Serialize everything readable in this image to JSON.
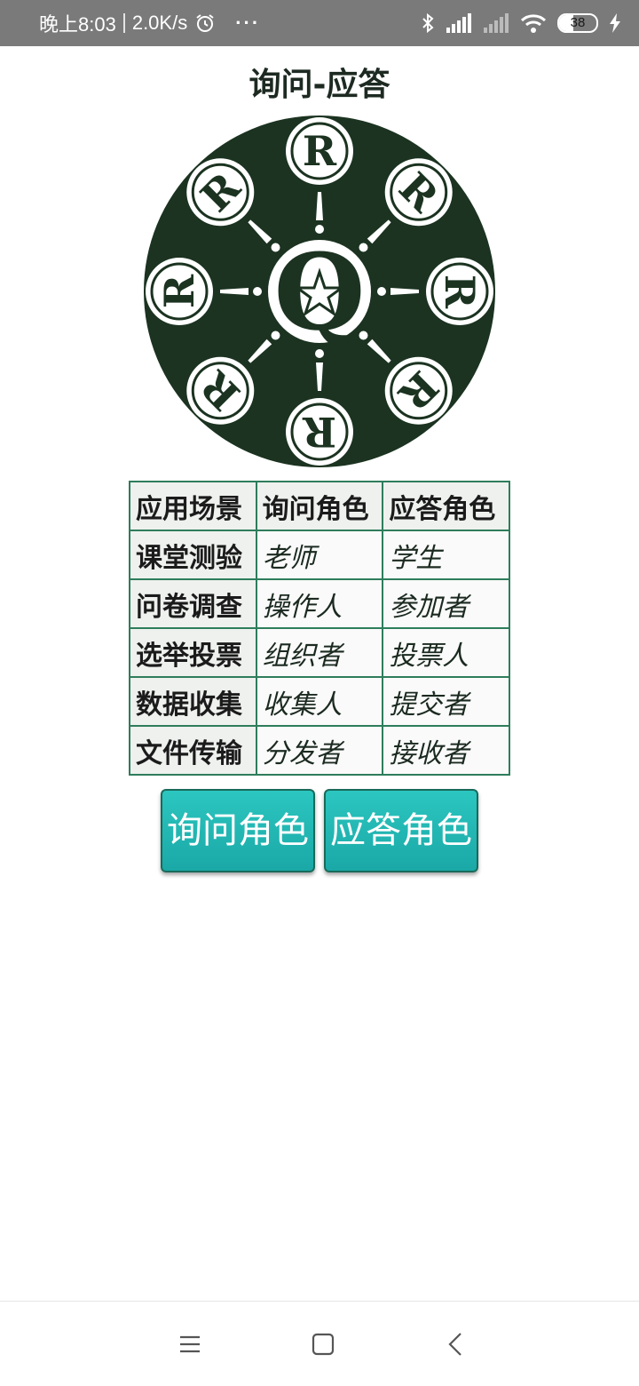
{
  "status_bar": {
    "time": "晚上8:03",
    "net_speed": "2.0K/s",
    "more": "···",
    "battery": "38"
  },
  "page": {
    "title": "询问-应答"
  },
  "logo": {
    "center_letter": "Q",
    "ring_letter": "R",
    "bg_color": "#1b3320",
    "fg_color": "#ffffff"
  },
  "table": {
    "headers": [
      "应用场景",
      "询问角色",
      "应答角色"
    ],
    "rows": [
      [
        "课堂测验",
        "老师",
        "学生"
      ],
      [
        "问卷调查",
        "操作人",
        "参加者"
      ],
      [
        "选举投票",
        "组织者",
        "投票人"
      ],
      [
        "数据收集",
        "收集人",
        "提交者"
      ],
      [
        "文件传输",
        "分发者",
        "接收者"
      ]
    ]
  },
  "buttons": {
    "ask": "询问角色",
    "answer": "应答角色"
  },
  "colors": {
    "accent": "#1fb8b4",
    "table_border": "#2e7d5b"
  }
}
